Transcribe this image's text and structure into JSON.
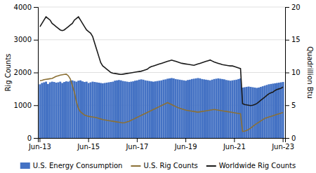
{
  "chart_data": {
    "type": "bar",
    "ylabel": "Rig Counts",
    "y2label": "Quadrillion Btu",
    "ylim": [
      0,
      4000
    ],
    "yticks": [
      0,
      1000,
      2000,
      3000,
      4000
    ],
    "y2lim": [
      0,
      20
    ],
    "y2ticks": [
      0,
      5,
      10,
      15,
      20
    ],
    "grid": true,
    "legend": "bottom",
    "categories": [
      "Jun-13",
      null,
      null,
      null,
      null,
      null,
      null,
      null,
      null,
      null,
      null,
      null,
      null,
      null,
      null,
      null,
      null,
      null,
      null,
      null,
      null,
      null,
      null,
      null,
      "Jun-15",
      null,
      null,
      null,
      null,
      null,
      null,
      null,
      null,
      null,
      null,
      null,
      null,
      null,
      null,
      null,
      null,
      null,
      null,
      null,
      null,
      null,
      null,
      null,
      "Jun-17",
      null,
      null,
      null,
      null,
      null,
      null,
      null,
      null,
      null,
      null,
      null,
      null,
      null,
      null,
      null,
      null,
      null,
      null,
      null,
      null,
      null,
      null,
      null,
      "Jun-19",
      null,
      null,
      null,
      null,
      null,
      null,
      null,
      null,
      null,
      null,
      null,
      null,
      null,
      null,
      null,
      null,
      null,
      null,
      null,
      null,
      null,
      null,
      null,
      "Jun-21",
      null,
      null,
      null,
      null,
      null,
      null,
      null,
      null,
      null,
      null,
      null,
      null,
      null,
      null,
      null,
      null,
      null,
      null,
      null,
      null,
      null,
      null,
      null,
      "Jun-23"
    ],
    "series": [
      {
        "name": "U.S. Energy Consumption",
        "type": "bar",
        "color": "#4472C4",
        "values": [
          1640,
          1680,
          1700,
          1720,
          1650,
          1700,
          1720,
          1710,
          1690,
          1700,
          1720,
          1680,
          1710,
          1730,
          1720,
          1750,
          1760,
          1740,
          1720,
          1750,
          1760,
          1730,
          1710,
          1720,
          1680,
          1700,
          1720,
          1710,
          1700,
          1690,
          1680,
          1670,
          1680,
          1690,
          1700,
          1710,
          1720,
          1750,
          1760,
          1770,
          1760,
          1740,
          1730,
          1720,
          1710,
          1720,
          1730,
          1750,
          1760,
          1780,
          1790,
          1780,
          1760,
          1750,
          1740,
          1730,
          1720,
          1730,
          1740,
          1750,
          1760,
          1780,
          1790,
          1810,
          1820,
          1830,
          1820,
          1800,
          1790,
          1780,
          1770,
          1760,
          1750,
          1770,
          1780,
          1800,
          1810,
          1820,
          1830,
          1820,
          1800,
          1790,
          1780,
          1770,
          1760,
          1780,
          1800,
          1810,
          1820,
          1810,
          1800,
          1790,
          1770,
          1760,
          1750,
          1760,
          1770,
          1780,
          1800,
          1820,
          1540,
          1550,
          1560,
          1570,
          1560,
          1550,
          1540,
          1530,
          1540,
          1560,
          1580,
          1600,
          1620,
          1640,
          1650,
          1660,
          1670,
          1680,
          1690,
          1700,
          1710
        ]
      },
      {
        "name": "U.S. Rig Counts",
        "type": "line",
        "color": "#8B7035",
        "values": [
          1750,
          1760,
          1780,
          1790,
          1800,
          1810,
          1820,
          1850,
          1880,
          1900,
          1920,
          1930,
          1940,
          1950,
          1900,
          1800,
          1600,
          1400,
          1100,
          900,
          800,
          750,
          700,
          680,
          660,
          650,
          640,
          630,
          620,
          600,
          580,
          560,
          550,
          540,
          530,
          520,
          510,
          500,
          490,
          480,
          470,
          460,
          470,
          490,
          510,
          540,
          570,
          600,
          630,
          660,
          690,
          720,
          750,
          780,
          810,
          840,
          870,
          900,
          930,
          960,
          990,
          1020,
          1050,
          1080,
          1050,
          1020,
          990,
          960,
          930,
          910,
          890,
          870,
          850,
          840,
          830,
          820,
          810,
          800,
          790,
          800,
          810,
          820,
          830,
          840,
          850,
          860,
          870,
          860,
          850,
          840,
          830,
          820,
          810,
          800,
          790,
          780,
          770,
          760,
          750,
          740,
          200,
          210,
          230,
          260,
          300,
          350,
          400,
          440,
          480,
          520,
          560,
          600,
          620,
          640,
          660,
          680,
          700,
          720,
          740,
          760,
          780
        ]
      },
      {
        "name": "Worldwide Rig Counts",
        "type": "line",
        "color": "#1A1A1A",
        "values": [
          3400,
          3500,
          3600,
          3700,
          3650,
          3600,
          3500,
          3450,
          3400,
          3350,
          3300,
          3280,
          3300,
          3350,
          3400,
          3450,
          3500,
          3600,
          3650,
          3700,
          3600,
          3500,
          3400,
          3300,
          3250,
          3200,
          3100,
          2900,
          2700,
          2500,
          2300,
          2200,
          2150,
          2100,
          2050,
          2000,
          1980,
          1970,
          1960,
          1950,
          1940,
          1950,
          1960,
          1970,
          1980,
          1990,
          2000,
          2010,
          2020,
          2030,
          2040,
          2060,
          2080,
          2100,
          2150,
          2180,
          2200,
          2220,
          2240,
          2260,
          2280,
          2300,
          2320,
          2340,
          2360,
          2380,
          2360,
          2340,
          2320,
          2300,
          2280,
          2270,
          2260,
          2250,
          2240,
          2230,
          2220,
          2240,
          2260,
          2280,
          2300,
          2320,
          2340,
          2360,
          2380,
          2350,
          2320,
          2300,
          2280,
          2260,
          2240,
          2230,
          2220,
          2210,
          2200,
          2200,
          2180,
          2160,
          2140,
          2120,
          1050,
          1020,
          1010,
          1000,
          990,
          1000,
          1020,
          1050,
          1100,
          1150,
          1200,
          1250,
          1300,
          1350,
          1380,
          1400,
          1450,
          1480,
          1500,
          1520,
          1560
        ]
      }
    ]
  }
}
